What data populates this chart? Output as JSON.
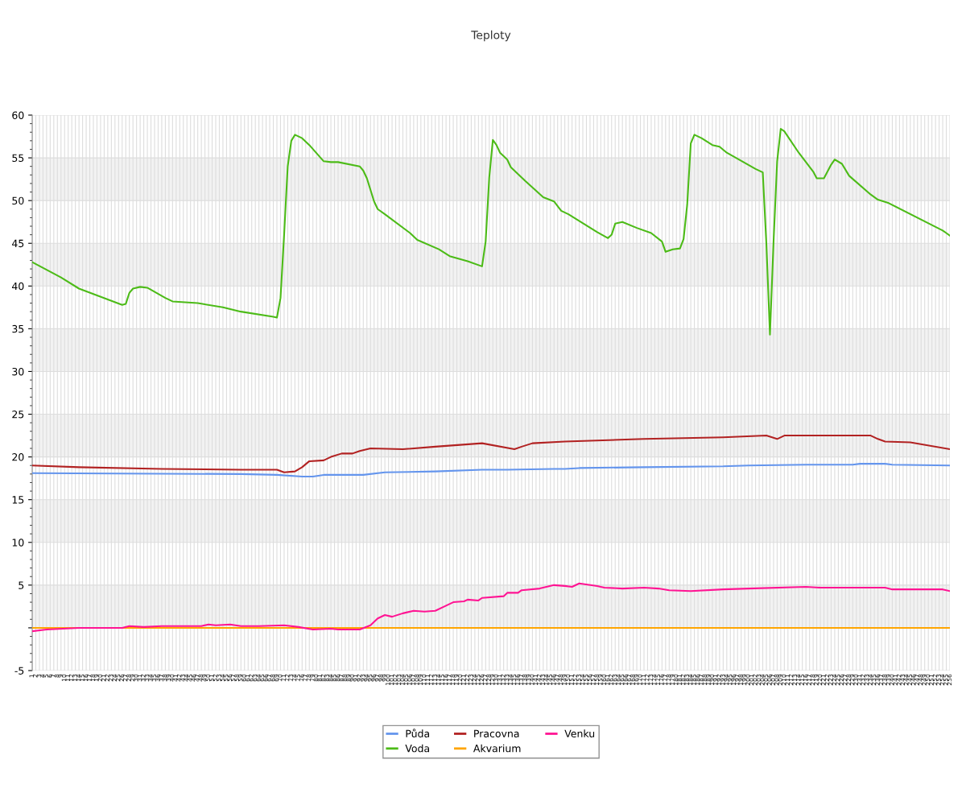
{
  "chart_data": {
    "type": "line",
    "title": "Teploty",
    "categories": [
      "1",
      "2",
      "3",
      "4",
      "5",
      "6",
      "7",
      "8",
      "9",
      "10",
      "11",
      "12",
      "13",
      "14",
      "15",
      "16",
      "17",
      "18",
      "19",
      "20",
      "21",
      "22",
      "23",
      "24",
      "25",
      "26",
      "27",
      "28",
      "29",
      "30",
      "31",
      "32",
      "33",
      "34",
      "35",
      "36",
      "37",
      "38",
      "39",
      "40",
      "41",
      "42",
      "43",
      "44",
      "45",
      "46",
      "47",
      "48",
      "49",
      "50",
      "51",
      "52",
      "53",
      "54",
      "55",
      "56",
      "57",
      "58",
      "59",
      "60",
      "61",
      "62",
      "63",
      "64",
      "65",
      "66",
      "67",
      "68",
      "69",
      "70",
      "71",
      "72",
      "73",
      "74",
      "75",
      "76",
      "77",
      "78",
      "79",
      "80",
      "81",
      "82",
      "83",
      "84",
      "85",
      "86",
      "87",
      "88",
      "89",
      "90",
      "91",
      "92",
      "93",
      "94",
      "95",
      "96",
      "97",
      "98",
      "99",
      "100",
      "101",
      "102",
      "103",
      "104",
      "105",
      "106",
      "107",
      "108",
      "109",
      "110",
      "111",
      "112",
      "113",
      "114",
      "115",
      "116",
      "117",
      "118",
      "119",
      "120",
      "121",
      "122",
      "123",
      "124",
      "125",
      "126",
      "127",
      "128",
      "129",
      "130",
      "131",
      "132",
      "133",
      "134",
      "135",
      "136",
      "137",
      "138",
      "139",
      "140",
      "141",
      "142",
      "143",
      "144",
      "145",
      "146",
      "147",
      "148",
      "149",
      "150",
      "151",
      "152",
      "153",
      "154",
      "155",
      "156",
      "157",
      "158",
      "159",
      "160",
      "161",
      "162",
      "163",
      "164",
      "165",
      "166",
      "167",
      "168",
      "169",
      "170",
      "171",
      "172",
      "173",
      "174",
      "175",
      "176",
      "177",
      "178",
      "179",
      "180",
      "181",
      "182",
      "183",
      "184",
      "185",
      "186",
      "187",
      "188",
      "189",
      "190",
      "191",
      "192",
      "193",
      "194",
      "195",
      "196",
      "197",
      "198",
      "199",
      "200",
      "201",
      "202",
      "203",
      "204",
      "205",
      "206",
      "207",
      "208",
      "209",
      "210",
      "211",
      "212",
      "213",
      "214",
      "215",
      "216",
      "217",
      "218",
      "219",
      "220",
      "221",
      "222",
      "223",
      "224",
      "225",
      "226",
      "227",
      "228",
      "229",
      "230",
      "231",
      "232",
      "233",
      "234",
      "235",
      "236",
      "237",
      "238",
      "239",
      "240",
      "241",
      "242",
      "243",
      "244",
      "245",
      "246",
      "247",
      "248",
      "249",
      "250",
      "251",
      "252",
      "253",
      "254",
      "255",
      "256"
    ],
    "series": [
      {
        "name": "Půda",
        "color": "#6495ed",
        "x": [
          "1",
          "59",
          "69",
          "76",
          "79",
          "82",
          "93",
          "99",
          "113",
          "126",
          "133",
          "146",
          "149",
          "153",
          "171",
          "193",
          "200",
          "216",
          "229",
          "231",
          "238",
          "240",
          "256"
        ],
        "values": [
          18.1,
          18.0,
          17.9,
          17.7,
          17.7,
          17.9,
          17.9,
          18.2,
          18.3,
          18.5,
          18.5,
          18.6,
          18.6,
          18.7,
          18.8,
          18.9,
          19.0,
          19.1,
          19.1,
          19.2,
          19.2,
          19.1,
          19.0
        ]
      },
      {
        "name": "Voda",
        "color": "#4cbb17",
        "x": [
          "1",
          "9",
          "14",
          "26",
          "27",
          "28",
          "29",
          "31",
          "33",
          "38",
          "40",
          "47",
          "54",
          "59",
          "68",
          "69",
          "70",
          "71",
          "72",
          "73",
          "74",
          "76",
          "78",
          "82",
          "84",
          "86",
          "92",
          "93",
          "94",
          "96",
          "97",
          "99",
          "106",
          "108",
          "114",
          "117",
          "122",
          "126",
          "127",
          "128",
          "129",
          "130",
          "131",
          "133",
          "134",
          "138",
          "143",
          "146",
          "148",
          "150",
          "158",
          "161",
          "162",
          "163",
          "165",
          "169",
          "173",
          "176",
          "177",
          "179",
          "181",
          "182",
          "183",
          "184",
          "185",
          "187",
          "190",
          "192",
          "194",
          "202",
          "204",
          "205",
          "206",
          "207",
          "208",
          "209",
          "210",
          "214",
          "218",
          "219",
          "221",
          "223",
          "224",
          "226",
          "228",
          "234",
          "236",
          "239",
          "254",
          "255",
          "256"
        ],
        "values": [
          42.8,
          41.0,
          39.7,
          37.8,
          37.9,
          39.2,
          39.7,
          39.9,
          39.8,
          38.6,
          38.2,
          38.0,
          37.5,
          37.0,
          36.4,
          36.3,
          38.6,
          46,
          54,
          57.0,
          57.7,
          57.3,
          56.5,
          54.6,
          54.5,
          54.5,
          54.0,
          53.5,
          52.6,
          49.9,
          49.0,
          48.4,
          46.2,
          45.4,
          44.3,
          43.5,
          42.9,
          42.3,
          45.2,
          52.7,
          57.1,
          56.5,
          55.6,
          54.8,
          53.9,
          52.3,
          50.4,
          49.9,
          48.8,
          48.4,
          46.3,
          45.6,
          46.0,
          47.3,
          47.5,
          46.8,
          46.2,
          45.2,
          44.0,
          44.3,
          44.4,
          45.5,
          49.5,
          56.7,
          57.7,
          57.3,
          56.5,
          56.3,
          55.6,
          53.7,
          53.3,
          45,
          34.3,
          45.2,
          54.6,
          58.4,
          58.1,
          55.6,
          53.4,
          52.6,
          52.6,
          54.2,
          54.8,
          54.3,
          52.9,
          50.7,
          50.1,
          49.7,
          46.5,
          46.2,
          45.9
        ]
      },
      {
        "name": "Pracovna",
        "color": "#b22222",
        "x": [
          "1",
          "14",
          "37",
          "59",
          "69",
          "71",
          "74",
          "76",
          "78",
          "82",
          "84",
          "87",
          "90",
          "92",
          "95",
          "104",
          "113",
          "126",
          "135",
          "137",
          "140",
          "149",
          "171",
          "193",
          "205",
          "208",
          "210",
          "216",
          "234",
          "236",
          "238",
          "245",
          "256"
        ],
        "values": [
          19.0,
          18.8,
          18.6,
          18.5,
          18.5,
          18.2,
          18.3,
          18.8,
          19.5,
          19.6,
          20.0,
          20.4,
          20.4,
          20.7,
          21.0,
          20.9,
          21.2,
          21.6,
          20.9,
          21.2,
          21.6,
          21.8,
          22.1,
          22.3,
          22.5,
          22.1,
          22.5,
          22.5,
          22.5,
          22.1,
          21.8,
          21.7,
          20.9
        ]
      },
      {
        "name": "Akvarium",
        "color": "#ffa500",
        "x": [
          "1",
          "256"
        ],
        "values": [
          0,
          0
        ]
      },
      {
        "name": "Venku",
        "color": "#ff1493",
        "x": [
          "1",
          "5",
          "14",
          "26",
          "28",
          "32",
          "37",
          "48",
          "50",
          "52",
          "56",
          "59",
          "64",
          "71",
          "75",
          "79",
          "84",
          "86",
          "92",
          "95",
          "97",
          "99",
          "101",
          "104",
          "107",
          "110",
          "113",
          "116",
          "118",
          "121",
          "122",
          "125",
          "126",
          "132",
          "133",
          "136",
          "137",
          "142",
          "146",
          "149",
          "151",
          "153",
          "158",
          "160",
          "165",
          "171",
          "175",
          "178",
          "184",
          "193",
          "200",
          "216",
          "220",
          "238",
          "240",
          "254",
          "256"
        ],
        "values": [
          -0.4,
          -0.2,
          0.0,
          0.0,
          0.2,
          0.1,
          0.2,
          0.2,
          0.4,
          0.3,
          0.4,
          0.2,
          0.2,
          0.3,
          0.1,
          -0.2,
          -0.1,
          -0.2,
          -0.2,
          0.3,
          1.1,
          1.5,
          1.3,
          1.7,
          2.0,
          1.9,
          2.0,
          2.6,
          3.0,
          3.1,
          3.3,
          3.2,
          3.5,
          3.7,
          4.1,
          4.1,
          4.4,
          4.6,
          5.0,
          4.9,
          4.8,
          5.2,
          4.9,
          4.7,
          4.6,
          4.7,
          4.6,
          4.4,
          4.3,
          4.5,
          4.6,
          4.8,
          4.7,
          4.7,
          4.5,
          4.5,
          4.3
        ]
      }
    ],
    "ylim": [
      -5,
      60
    ],
    "yticks": [
      -5,
      {
        "value": 0,
        "label": null
      },
      5,
      10,
      15,
      20,
      25,
      30,
      35,
      40,
      45,
      50,
      55,
      60
    ],
    "bands": [
      {
        "axis": "y",
        "from": 0,
        "to": 5,
        "color": "#f2f2f2"
      },
      {
        "axis": "y",
        "from": 10,
        "to": 15,
        "color": "#f2f2f2"
      },
      {
        "axis": "y",
        "from": 20,
        "to": 25,
        "color": "#f2f2f2"
      },
      {
        "axis": "y",
        "from": 30,
        "to": 35,
        "color": "#f2f2f2"
      },
      {
        "axis": "y",
        "from": 40,
        "to": 45,
        "color": "#f2f2f2"
      },
      {
        "axis": "y",
        "from": 50,
        "to": 55,
        "color": "#f2f2f2"
      }
    ],
    "grid": true,
    "legend": "bottom",
    "marker": "none",
    "line_style": "solid"
  }
}
